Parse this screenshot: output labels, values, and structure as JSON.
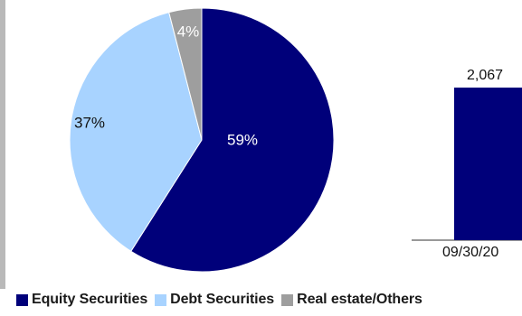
{
  "chart_data": [
    {
      "type": "pie",
      "title": "",
      "slices": [
        {
          "label": "Equity Securities",
          "value": 59,
          "display": "59%",
          "color": "#00007a"
        },
        {
          "label": "Debt Securities",
          "value": 37,
          "display": "37%",
          "color": "#a8d3ff"
        },
        {
          "label": "Real estate/Others",
          "value": 4,
          "display": "4%",
          "color": "#9e9e9e"
        }
      ],
      "legend_position": "bottom"
    },
    {
      "type": "bar",
      "title": "",
      "categories": [
        "09/30/20"
      ],
      "values": [
        2067
      ],
      "value_labels": [
        "2,067"
      ],
      "color": "#00007a",
      "ylim": [
        0,
        2500
      ]
    }
  ],
  "legend": {
    "items": [
      {
        "label": "Equity Securities",
        "color": "#00007a"
      },
      {
        "label": "Debt Securities",
        "color": "#a8d3ff"
      },
      {
        "label": "Real estate/Others",
        "color": "#9e9e9e"
      }
    ]
  }
}
